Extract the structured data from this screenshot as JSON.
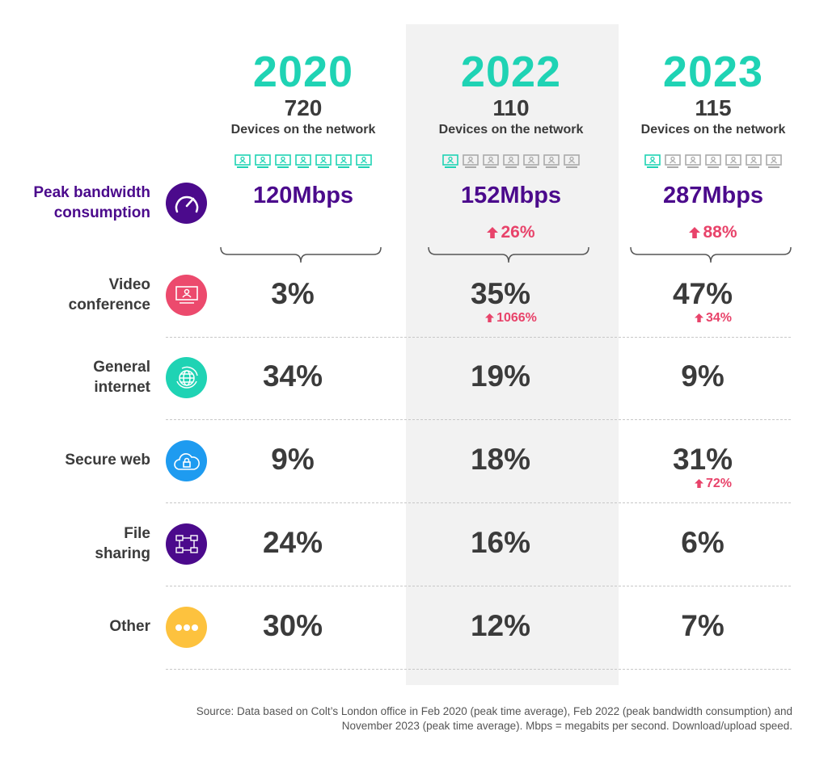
{
  "colors": {
    "teal": "#1fd3b4",
    "purple": "#4b0a8c",
    "pink": "#e8436a",
    "blue": "#1e9bf0",
    "yellow": "#fdc23e",
    "gray": "#aaaaaa",
    "text": "#3b3b3b"
  },
  "peak_label": "Peak bandwidth consumption",
  "chart_data": {
    "type": "table",
    "columns": [
      {
        "year": "2020",
        "devices": "720",
        "devices_label": "Devices on the network",
        "device_icons_active": 7,
        "device_icons_total": 7,
        "peak": "120Mbps",
        "peak_change": ""
      },
      {
        "year": "2022",
        "devices": "110",
        "devices_label": "Devices on the network",
        "device_icons_active": 1,
        "device_icons_total": 7,
        "peak": "152Mbps",
        "peak_change": "26%"
      },
      {
        "year": "2023",
        "devices": "115",
        "devices_label": "Devices on the network",
        "device_icons_active": 1,
        "device_icons_total": 7,
        "peak": "287Mbps",
        "peak_change": "88%"
      }
    ],
    "rows": [
      {
        "label": "Video conference",
        "icon": "video-conference-icon",
        "color": "#ec4a6d",
        "values": [
          "3%",
          "35%",
          "47%"
        ],
        "changes": [
          "",
          "1066%",
          "34%"
        ]
      },
      {
        "label": "General internet",
        "icon": "globe-icon",
        "color": "#1fd3b4",
        "values": [
          "34%",
          "19%",
          "9%"
        ],
        "changes": [
          "",
          "",
          ""
        ]
      },
      {
        "label": "Secure web",
        "icon": "cloud-lock-icon",
        "color": "#1e9bf0",
        "values": [
          "9%",
          "18%",
          "31%"
        ],
        "changes": [
          "",
          "",
          "72%"
        ]
      },
      {
        "label": "File sharing",
        "icon": "network-icon",
        "color": "#4b0a8c",
        "values": [
          "24%",
          "16%",
          "6%"
        ],
        "changes": [
          "",
          "",
          ""
        ]
      },
      {
        "label": "Other",
        "icon": "more-icon",
        "color": "#fdc23e",
        "values": [
          "30%",
          "12%",
          "7%"
        ],
        "changes": [
          "",
          "",
          ""
        ]
      }
    ]
  },
  "source": "Source: Data based on Colt’s London office in Feb 2020 (peak time average), Feb 2022 (peak bandwidth consumption) and November 2023 (peak time average). Mbps = megabits per second. Download/upload speed."
}
